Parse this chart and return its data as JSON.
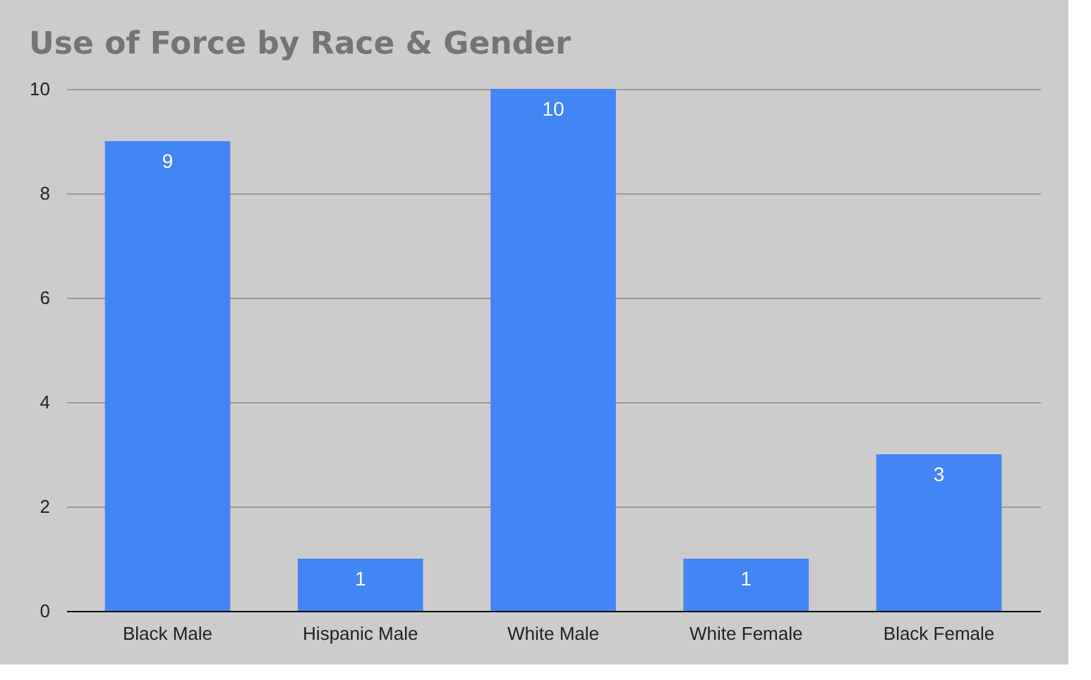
{
  "chart_data": {
    "type": "bar",
    "title": "Use of Force by Race & Gender",
    "categories": [
      "Black Male",
      "Hispanic Male",
      "White Male",
      "White Female",
      "Black Female"
    ],
    "values": [
      9,
      1,
      10,
      1,
      3
    ],
    "color": "#4285f4",
    "ylim": [
      0,
      10
    ],
    "yticks": [
      0,
      2,
      4,
      6,
      8,
      10
    ],
    "grid": "y",
    "data_labels": true
  }
}
